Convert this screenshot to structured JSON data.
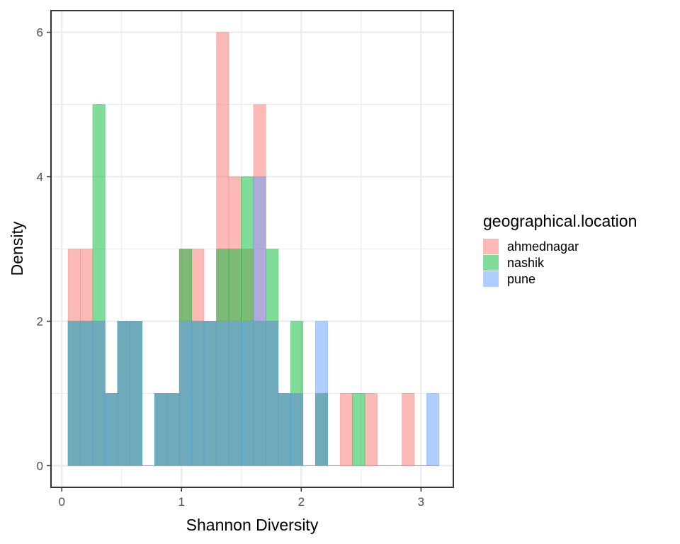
{
  "chart_data": {
    "type": "bar",
    "title": "",
    "xlabel": "Shannon Diversity",
    "ylabel": "Density",
    "xlim": [
      -0.09,
      3.27
    ],
    "ylim": [
      -0.3,
      6.3
    ],
    "xticks": [
      "0",
      "1",
      "2",
      "3"
    ],
    "yticks": [
      "0",
      "2",
      "4",
      "6"
    ],
    "grid": true,
    "legend": {
      "title": "geographical.location",
      "position": "right"
    },
    "bin_width": 0.1033,
    "bin_start": 0.052,
    "series": [
      {
        "name": "ahmednagar",
        "color": "#F8766D",
        "values": [
          3,
          3,
          2,
          1,
          2,
          2,
          0,
          1,
          1,
          3,
          3,
          2,
          6,
          4,
          3,
          5,
          2,
          1,
          1,
          0,
          1,
          0,
          1,
          0,
          1,
          0,
          0,
          1,
          0,
          0
        ]
      },
      {
        "name": "nashik",
        "color": "#00BA38",
        "values": [
          2,
          2,
          5,
          1,
          2,
          2,
          0,
          1,
          1,
          3,
          2,
          2,
          3,
          3,
          4,
          2,
          3,
          1,
          2,
          0,
          1,
          0,
          0,
          1,
          0,
          0,
          0,
          0,
          0,
          0
        ]
      },
      {
        "name": "pune",
        "color": "#619CFF",
        "values": [
          2,
          2,
          2,
          1,
          2,
          2,
          0,
          1,
          1,
          2,
          2,
          2,
          2,
          2,
          2,
          4,
          2,
          1,
          1,
          0,
          2,
          0,
          0,
          0,
          0,
          0,
          0,
          0,
          0,
          1
        ]
      }
    ]
  }
}
